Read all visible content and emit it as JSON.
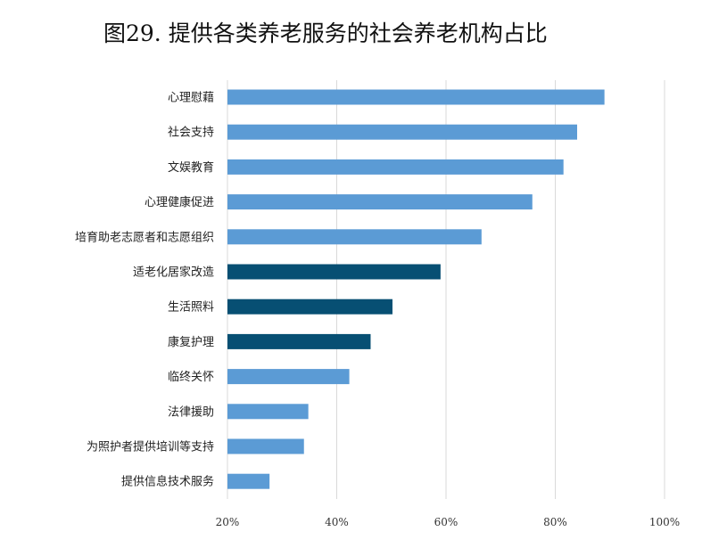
{
  "chart_data": {
    "type": "bar",
    "orientation": "horizontal",
    "title": "图29. 提供各类养老服务的社会养老机构占比",
    "categories": [
      "心理慰藉",
      "社会支持",
      "文娱教育",
      "心理健康促进",
      "培育助老志愿者和志愿组织",
      "适老化居家改造",
      "生活照料",
      "康复护理",
      "临终关怀",
      "法律援助",
      "为照护者提供培训等支持",
      "提供信息技术服务"
    ],
    "values": [
      89,
      84,
      81.5,
      75.8,
      66.5,
      59,
      50.2,
      46.2,
      42.3,
      34.8,
      34,
      27.7
    ],
    "highlight_indices": [
      5,
      6,
      7
    ],
    "xlim": [
      20,
      100
    ],
    "xticks": [
      20,
      40,
      60,
      80,
      100
    ],
    "xtick_labels": [
      "20%",
      "40%",
      "60%",
      "80%",
      "100%"
    ],
    "grid": "vertical",
    "colors": {
      "default": "#5b9bd5",
      "highlight": "#074f73",
      "grid": "#d9d9d9"
    }
  }
}
